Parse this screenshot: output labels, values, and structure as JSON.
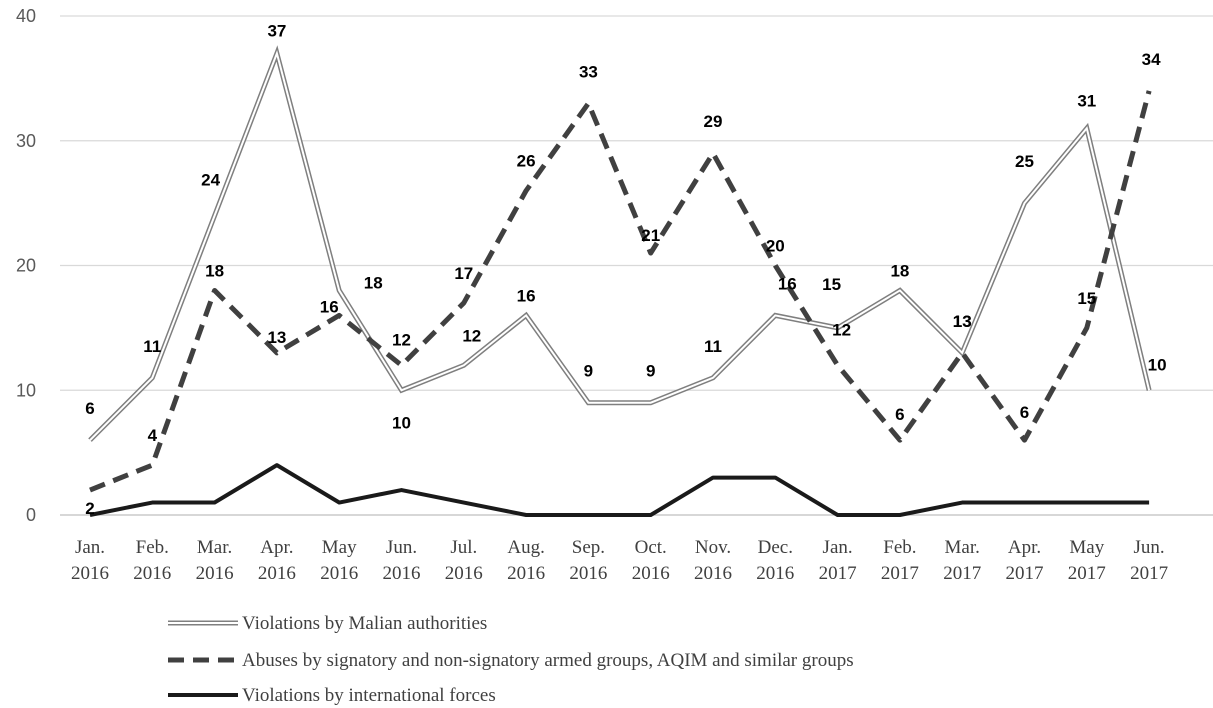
{
  "chart_data": {
    "type": "line",
    "categories": [
      [
        "Jan.",
        "2016"
      ],
      [
        "Feb.",
        "2016"
      ],
      [
        "Mar.",
        "2016"
      ],
      [
        "Apr.",
        "2016"
      ],
      [
        "May",
        "2016"
      ],
      [
        "Jun.",
        "2016"
      ],
      [
        "Jul.",
        "2016"
      ],
      [
        "Aug.",
        "2016"
      ],
      [
        "Sep.",
        "2016"
      ],
      [
        "Oct.",
        "2016"
      ],
      [
        "Nov.",
        "2016"
      ],
      [
        "Dec.",
        "2016"
      ],
      [
        "Jan.",
        "2017"
      ],
      [
        "Feb.",
        "2017"
      ],
      [
        "Mar.",
        "2017"
      ],
      [
        "Apr.",
        "2017"
      ],
      [
        "May",
        "2017"
      ],
      [
        "Jun.",
        "2017"
      ]
    ],
    "ylim": [
      0,
      40
    ],
    "yticks": [
      0,
      10,
      20,
      30,
      40
    ],
    "grid": true,
    "legend_position": "bottom",
    "series": [
      {
        "name": "Violations by Malian authorities",
        "values": [
          6,
          11,
          24,
          37,
          18,
          10,
          12,
          16,
          9,
          9,
          11,
          16,
          15,
          18,
          13,
          25,
          31,
          10
        ],
        "style": "double",
        "color": "#7f7f7f",
        "labeled": true
      },
      {
        "name": "Abuses by signatory and non-signatory armed groups, AQIM and similar groups",
        "values": [
          2,
          4,
          18,
          13,
          16,
          12,
          17,
          26,
          33,
          21,
          29,
          20,
          12,
          6,
          13,
          6,
          15,
          34
        ],
        "style": "dashed",
        "color": "#404040",
        "labeled": true
      },
      {
        "name": "Violations by international forces",
        "values": [
          0,
          1,
          1,
          4,
          1,
          2,
          1,
          0,
          0,
          0,
          3,
          3,
          0,
          0,
          1,
          1,
          1,
          1
        ],
        "style": "solid",
        "color": "#1a1a1a",
        "labeled": false
      }
    ]
  }
}
